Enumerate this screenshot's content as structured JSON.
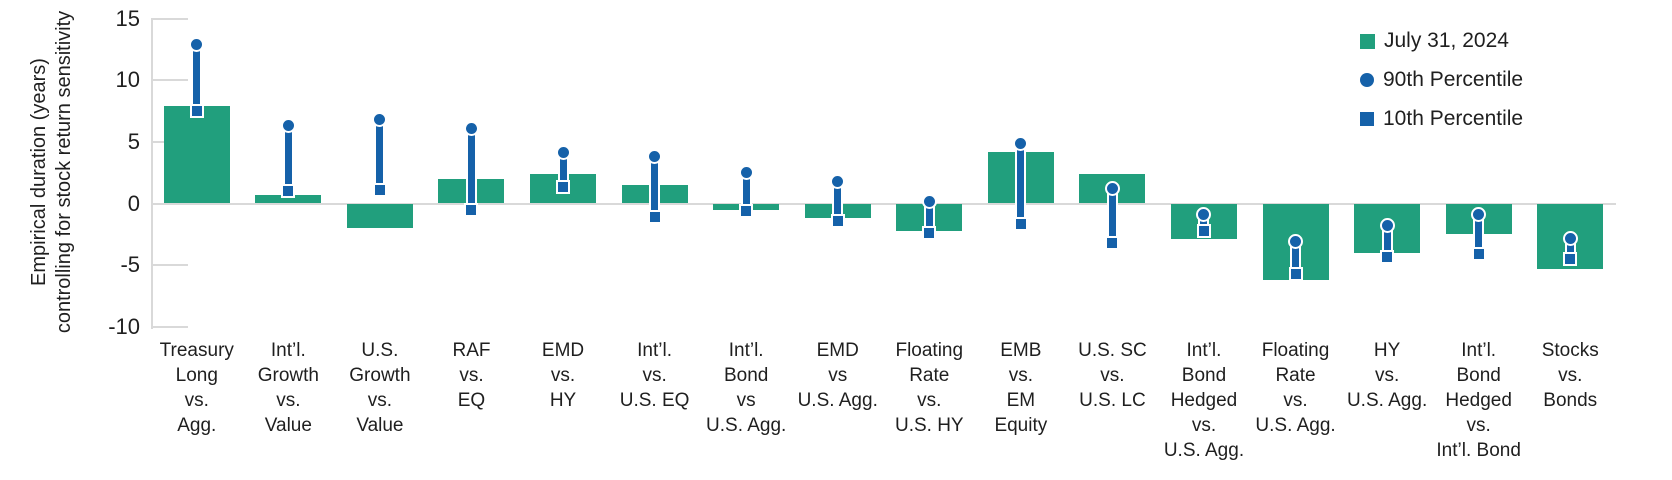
{
  "chart_data": {
    "type": "bar",
    "title": "",
    "ylabel_line1": "Empirical duration (years)",
    "ylabel_line2": "controlling for stock return sensitivity",
    "yticks": [
      15,
      10,
      5,
      0,
      -5,
      -10
    ],
    "ylim": [
      -10,
      15
    ],
    "grid": "ticks-and-zero-line-only",
    "legend_position": "top-right",
    "colors": {
      "bar": "#219f7d",
      "marker_blue": "#1561a9",
      "axis_gray": "#d9d9d9",
      "text": "#1f1f1f"
    },
    "categories": [
      "Treasury\nLong\nvs.\nAgg.",
      "Int’l.\nGrowth\nvs.\nValue",
      "U.S.\nGrowth\nvs.\nValue",
      "RAF\nvs.\nEQ",
      "EMD\nvs.\nHY",
      "Int’l.\nvs.\nU.S. EQ",
      "Int’l.\nBond\nvs\nU.S. Agg.",
      "EMD\nvs\nU.S. Agg.",
      "Floating\nRate\nvs.\nU.S. HY",
      "EMB\nvs.\nEM\nEquity",
      "U.S. SC\nvs.\nU.S. LC",
      "Int’l.\nBond\nHedged\nvs.\nU.S. Agg.",
      "Floating\nRate\nvs.\nU.S. Agg.",
      "HY\nvs.\nU.S. Agg.",
      "Int’l.\nBond\nHedged\nvs.\nInt’l. Bond",
      "Stocks\nvs.\nBonds"
    ],
    "series": [
      {
        "name": "July 31, 2024",
        "type": "bar",
        "values": [
          7.9,
          0.7,
          -2.0,
          2.0,
          2.4,
          1.5,
          -0.5,
          -1.2,
          -2.2,
          4.2,
          2.4,
          -2.9,
          -6.2,
          -4.0,
          -2.5,
          -5.3
        ]
      },
      {
        "name": "90th Percentile",
        "type": "circle-marker",
        "values": [
          12.9,
          6.3,
          6.8,
          6.1,
          4.1,
          3.8,
          2.5,
          1.8,
          0.2,
          4.9,
          1.2,
          -0.9,
          -3.1,
          -1.8,
          -0.9,
          -2.8
        ]
      },
      {
        "name": "10th Percentile",
        "type": "square-marker",
        "values": [
          7.5,
          1.0,
          1.1,
          -0.5,
          1.3,
          -1.1,
          -0.6,
          -1.4,
          -2.4,
          -1.7,
          -3.2,
          -2.2,
          -5.7,
          -4.3,
          -4.1,
          -4.5
        ]
      }
    ]
  }
}
